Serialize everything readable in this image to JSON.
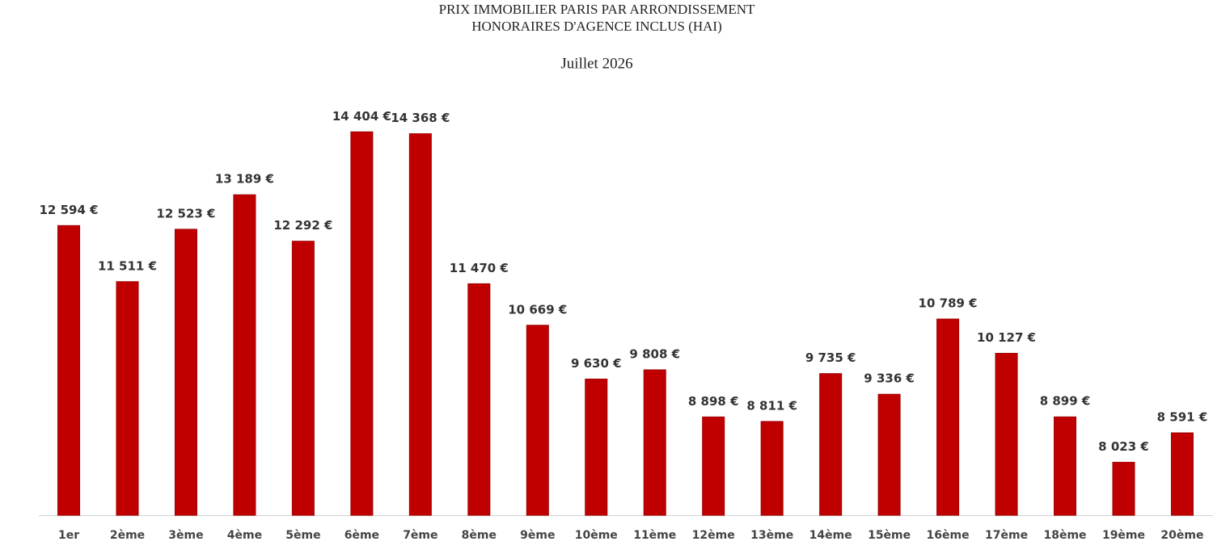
{
  "chart_data": {
    "type": "bar",
    "title": [
      "PRIX IMMOBILIER PARIS PAR ARRONDISSEMENT",
      "HONORAIRES D'AGENCE INCLUS (HAI)"
    ],
    "subtitle": "Juillet 2026",
    "categories": [
      "1er",
      "2ème",
      "3ème",
      "4ème",
      "5ème",
      "6ème",
      "7ème",
      "8ème",
      "9ème",
      "10ème",
      "11ème",
      "12ème",
      "13ème",
      "14ème",
      "15ème",
      "16ème",
      "17ème",
      "18ème",
      "19ème",
      "20ème"
    ],
    "values": [
      12594,
      11511,
      12523,
      13189,
      12292,
      14404,
      14368,
      11470,
      10669,
      9630,
      9808,
      8898,
      8811,
      9735,
      9336,
      10789,
      10127,
      8899,
      8023,
      8591
    ],
    "value_labels": [
      "12 594 €",
      "11 511 €",
      "12 523 €",
      "13 189 €",
      "12 292 €",
      "14 404 €",
      "14 368 €",
      "11 470 €",
      "10 669 €",
      "9 630 €",
      "9 808 €",
      "8 898 €",
      "8 811 €",
      "9 735 €",
      "9 336 €",
      "10 789 €",
      "10 127 €",
      "8 899 €",
      "8 023 €",
      "8 591 €"
    ],
    "color": "#c00000",
    "ylim": [
      7000,
      15500
    ]
  }
}
